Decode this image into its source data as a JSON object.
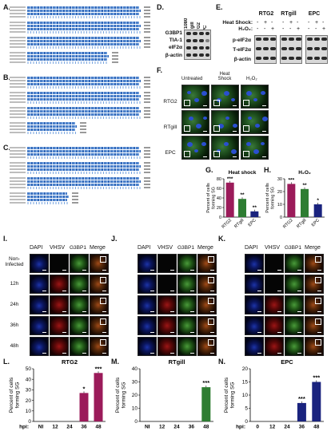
{
  "panels": {
    "A": "A.",
    "B": "B.",
    "C": "C.",
    "D": "D.",
    "E": "E.",
    "F": "F.",
    "G": "G.",
    "H": "H.",
    "I": "I.",
    "J": "J.",
    "K": "K.",
    "L": "L.",
    "M": "M.",
    "N": "N."
  },
  "western_d": {
    "lanes": [
      "HT1080",
      "RTgill",
      "RTG2",
      "EPC"
    ],
    "rows": [
      "G3BP1",
      "TIA-1",
      "eIF2α",
      "β-actin"
    ]
  },
  "western_e": {
    "groups": [
      "RTG2",
      "RTgill",
      "EPC"
    ],
    "treat_heat": "Heat Shock:",
    "treat_h2o2": "H₂O₂:",
    "heat_signs": [
      "-",
      "+",
      "-",
      "-",
      "+",
      "-",
      "-",
      "+",
      "-"
    ],
    "h2o2_signs": [
      "-",
      "-",
      "+",
      "-",
      "-",
      "+",
      "-",
      "-",
      "+"
    ],
    "rows": [
      "p-eIF2α",
      "T-eIF2α",
      "β-actin"
    ]
  },
  "micro_f": {
    "cols": [
      "Untreated",
      "Heat Shock",
      "H₂O₂"
    ],
    "rows": [
      "RTG2",
      "RTgill",
      "EPC"
    ]
  },
  "infection": {
    "channels": [
      "DAPI",
      "VHSV",
      "G3BP1",
      "Merge"
    ],
    "rows": [
      "Non-Infected",
      "12h",
      "24h",
      "36h",
      "48h"
    ]
  },
  "chart_data": [
    {
      "id": "G",
      "type": "bar",
      "title": "Heat shock",
      "ylabel": "Percent of cells forming SG",
      "ylim": [
        0,
        80
      ],
      "yticks": [
        0,
        20,
        40,
        60,
        80
      ],
      "categories": [
        "RTG2",
        "RTgill",
        "EPC"
      ],
      "values": [
        72,
        38,
        12
      ],
      "colors": [
        "#9b1b5a",
        "#2e7d32",
        "#1a237e"
      ],
      "sig": [
        "***",
        "**",
        "**"
      ]
    },
    {
      "id": "H",
      "type": "bar",
      "title": "H₂O₂",
      "ylabel": "Percent of cells forming SG",
      "ylim": [
        0,
        30
      ],
      "yticks": [
        0,
        10,
        20,
        30
      ],
      "categories": [
        "RTG2",
        "RTgill",
        "EPC"
      ],
      "values": [
        26,
        22,
        10
      ],
      "colors": [
        "#9b1b5a",
        "#2e7d32",
        "#1a237e"
      ],
      "sig": [
        "***",
        "**",
        "*"
      ]
    },
    {
      "id": "L",
      "type": "bar",
      "title": "RTG2",
      "ylabel": "Percent of cells forming SG",
      "xlabel": "hpi:",
      "ylim": [
        0,
        50
      ],
      "yticks": [
        0,
        10,
        20,
        30,
        40,
        50
      ],
      "categories": [
        "NI",
        "12",
        "24",
        "36",
        "48"
      ],
      "values": [
        0,
        0,
        0,
        27,
        46
      ],
      "colors": [
        "#9b1b5a",
        "#9b1b5a",
        "#9b1b5a",
        "#9b1b5a",
        "#9b1b5a"
      ],
      "sig": [
        "",
        "",
        "",
        "*",
        "***"
      ]
    },
    {
      "id": "M",
      "type": "bar",
      "title": "RTgill",
      "ylabel": "Percent of cells forming SG",
      "ylim": [
        0,
        40
      ],
      "yticks": [
        0,
        10,
        20,
        30,
        40
      ],
      "categories": [
        "NI",
        "12",
        "24",
        "36",
        "48"
      ],
      "values": [
        0,
        0,
        0,
        0,
        26
      ],
      "colors": [
        "#2e7d32",
        "#2e7d32",
        "#2e7d32",
        "#2e7d32",
        "#2e7d32"
      ],
      "sig": [
        "",
        "",
        "",
        "",
        "***"
      ]
    },
    {
      "id": "N",
      "type": "bar",
      "title": "EPC",
      "ylabel": "Percent of cells forming SG",
      "xlabel": "hpi:",
      "ylim": [
        0,
        20
      ],
      "yticks": [
        0,
        5,
        10,
        15,
        20
      ],
      "categories": [
        "0",
        "12",
        "24",
        "36",
        "48"
      ],
      "values": [
        0,
        0,
        0,
        7,
        15
      ],
      "colors": [
        "#1a237e",
        "#1a237e",
        "#1a237e",
        "#1a237e",
        "#1a237e"
      ],
      "sig": [
        "",
        "",
        "",
        "***",
        "***"
      ]
    }
  ]
}
